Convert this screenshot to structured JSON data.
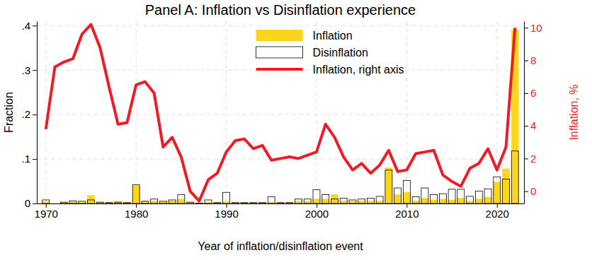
{
  "chart_data": {
    "type": "bar",
    "title": "Panel A: Inflation vs Disinflation experience",
    "x_label": "Year of inflation/disinflation event",
    "y_label": "Fraction",
    "y2_label": "Inflation, %",
    "x": [
      1970,
      1971,
      1972,
      1973,
      1974,
      1975,
      1976,
      1977,
      1978,
      1979,
      1980,
      1981,
      1982,
      1983,
      1984,
      1985,
      1986,
      1987,
      1988,
      1989,
      1990,
      1991,
      1992,
      1993,
      1994,
      1995,
      1996,
      1997,
      1998,
      1999,
      2000,
      2001,
      2002,
      2003,
      2004,
      2005,
      2006,
      2007,
      2008,
      2009,
      2010,
      2011,
      2012,
      2013,
      2014,
      2015,
      2016,
      2017,
      2018,
      2019,
      2020,
      2021,
      2022
    ],
    "series": [
      {
        "name": "Inflation",
        "type": "bar",
        "color": "#ffd51c",
        "values": [
          0.004,
          0,
          0.002,
          0.004,
          0.003,
          0.018,
          0.002,
          0.002,
          0.004,
          0.002,
          0.04,
          0.004,
          0.006,
          0.004,
          0.006,
          0.01,
          0.002,
          0.001,
          0.003,
          0.001,
          0.004,
          0.001,
          0.001,
          0.001,
          0.001,
          0.003,
          0.001,
          0.001,
          0.005,
          0.005,
          0.01,
          0.01,
          0.02,
          0.006,
          0.005,
          0.006,
          0.006,
          0.006,
          0.08,
          0.02,
          0.025,
          0.006,
          0.012,
          0.008,
          0.01,
          0.008,
          0.012,
          0.005,
          0.01,
          0.014,
          0.048,
          0.078,
          0.39
        ]
      },
      {
        "name": "Disinflation",
        "type": "bar",
        "color": "#ffffff",
        "values": [
          0.008,
          0,
          0.003,
          0.006,
          0.005,
          0.008,
          0.003,
          0.002,
          0.003,
          0.002,
          0.042,
          0.005,
          0.01,
          0.005,
          0.008,
          0.02,
          0.003,
          0.001,
          0.008,
          0.002,
          0.025,
          0.002,
          0.002,
          0.002,
          0.002,
          0.015,
          0.002,
          0.002,
          0.01,
          0.01,
          0.031,
          0.02,
          0.01,
          0.012,
          0.008,
          0.01,
          0.012,
          0.016,
          0.075,
          0.035,
          0.052,
          0.015,
          0.035,
          0.02,
          0.022,
          0.032,
          0.032,
          0.016,
          0.028,
          0.033,
          0.06,
          0.055,
          0.118
        ]
      },
      {
        "name": "Inflation, right axis",
        "type": "line",
        "axis": "y2",
        "color": "#ee1c25",
        "values": [
          3.8,
          7.6,
          7.9,
          8.1,
          9.6,
          10.2,
          8.8,
          6.4,
          4.1,
          4.2,
          6.5,
          6.7,
          6.0,
          2.7,
          3.3,
          2.1,
          0.0,
          -0.6,
          0.7,
          1.1,
          2.4,
          3.1,
          3.2,
          2.6,
          2.8,
          1.9,
          2.0,
          2.1,
          2.0,
          2.2,
          2.4,
          4.1,
          3.3,
          2.1,
          1.3,
          1.7,
          1.1,
          1.6,
          2.5,
          1.2,
          1.3,
          2.3,
          2.4,
          2.5,
          1.0,
          0.6,
          0.3,
          1.4,
          1.7,
          2.6,
          1.3,
          2.7,
          10.0
        ]
      }
    ],
    "xlim": [
      1969,
      2023
    ],
    "xticks": [
      1970,
      1980,
      1990,
      2000,
      2010,
      2020
    ],
    "ylim": [
      0,
      0.41
    ],
    "yticks": [
      0,
      {
        "value": 0.1,
        "label": ".1"
      },
      {
        "value": 0.2,
        "label": ".2"
      },
      {
        "value": 0.3,
        "label": ".3"
      },
      {
        "value": 0.4,
        "label": ".4"
      }
    ],
    "y2lim": [
      -0.75,
      10.4
    ],
    "y2ticks": [
      0,
      2,
      4,
      6,
      8,
      10
    ],
    "grid": true,
    "legend": "top"
  }
}
